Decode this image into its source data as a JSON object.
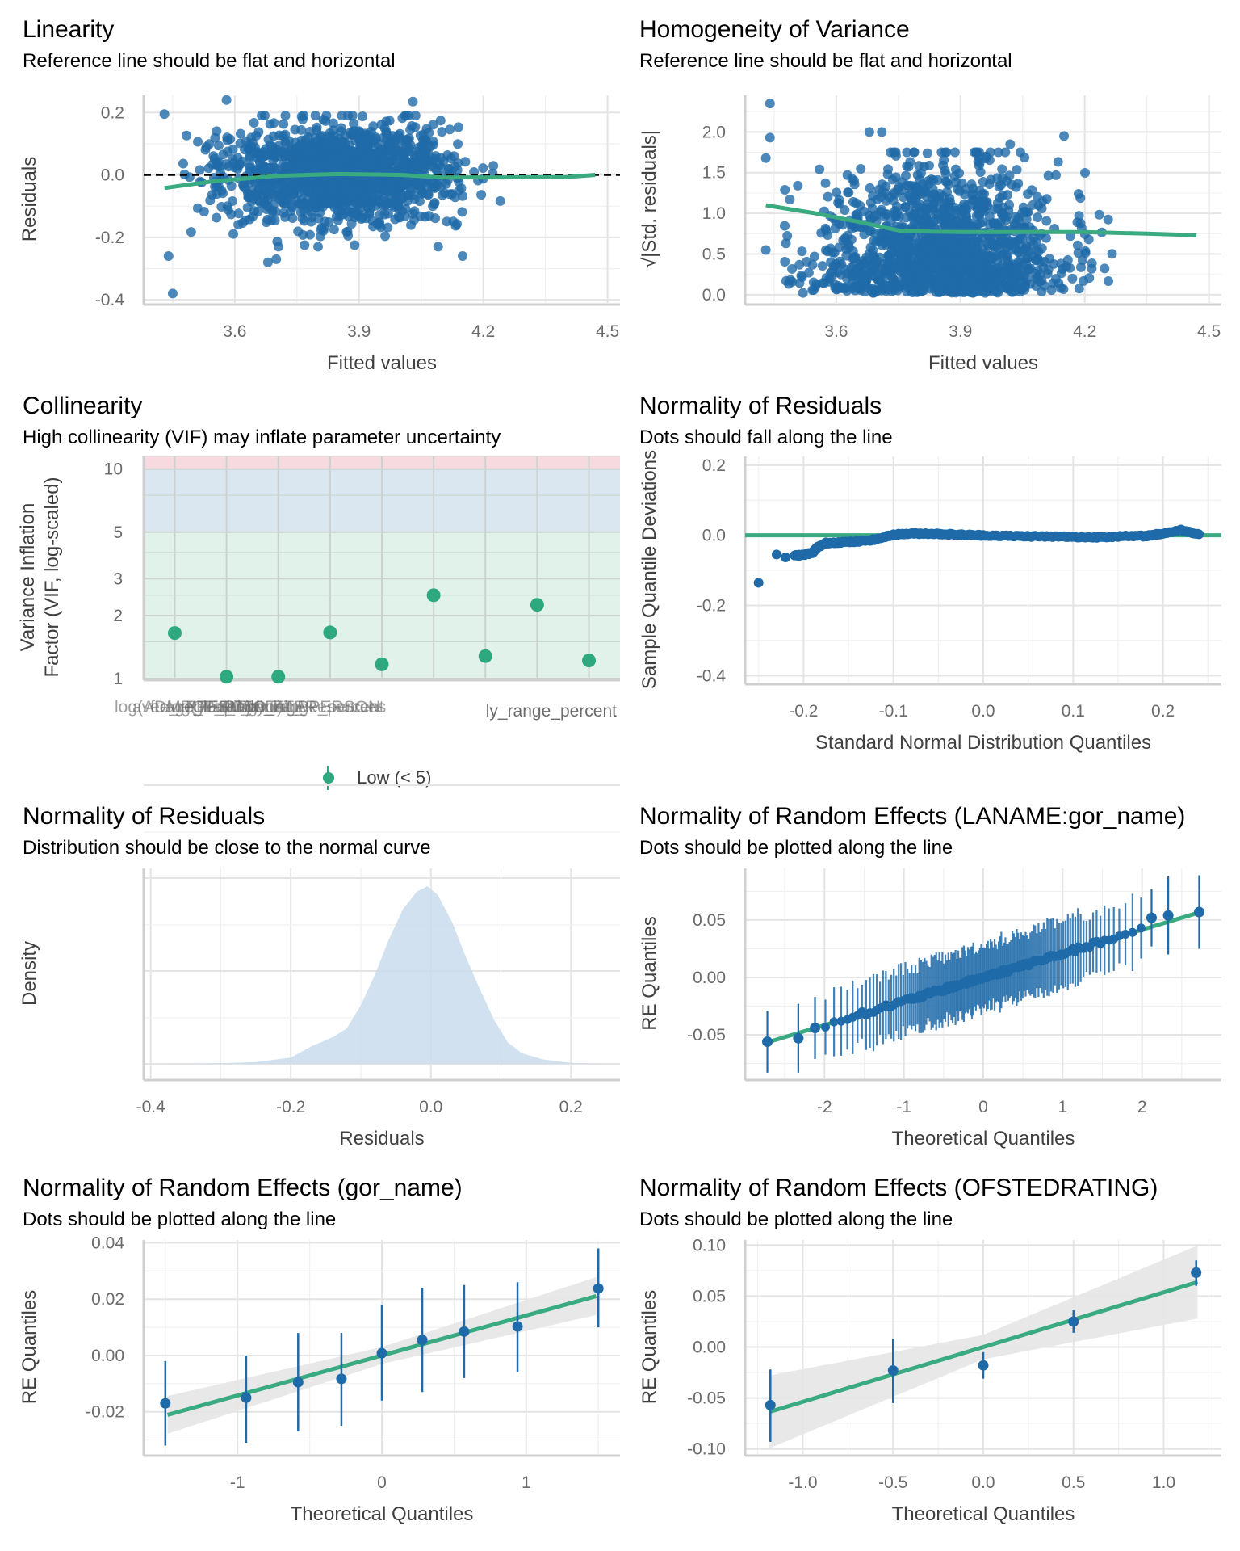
{
  "colors": {
    "points": "#1f6aa8",
    "fit": "#3aaa80",
    "ci": "#e6e6e6",
    "density": "#c9dcec",
    "vif_low": "#e0f2ea",
    "vif_mod": "#dae6f0",
    "vif_high": "#f7dadf",
    "vif_point": "#2ea87e"
  },
  "chart_data": [
    {
      "id": "linearity",
      "type": "scatter",
      "title": "Linearity",
      "subtitle": "Reference line should be flat and horizontal",
      "xlabel": "Fitted values",
      "ylabel": "Residuals",
      "xlim": [
        3.38,
        4.53
      ],
      "ylim": [
        -0.41,
        0.255
      ],
      "xticks": [
        3.6,
        3.9,
        4.2,
        4.5
      ],
      "xtick_labels": [
        "3.6",
        "3.9",
        "4.2",
        "4.5"
      ],
      "yticks": [
        -0.4,
        -0.2,
        0.0,
        0.2
      ],
      "ytick_labels": [
        "-0.4",
        "-0.2",
        "0.0",
        "0.2"
      ],
      "reference_line": 0.0,
      "point_cloud": {
        "n": 1400,
        "x_center": 3.85,
        "x_sd": 0.14,
        "y_sd": 0.075
      },
      "outliers": [
        [
          3.43,
          0.195
        ],
        [
          3.58,
          0.24
        ],
        [
          4.03,
          0.235
        ],
        [
          3.44,
          -0.26
        ],
        [
          3.45,
          -0.38
        ],
        [
          4.15,
          -0.26
        ],
        [
          3.7,
          -0.27
        ],
        [
          3.68,
          -0.28
        ]
      ],
      "smooth": {
        "x": [
          3.43,
          3.55,
          3.7,
          3.85,
          4.0,
          4.1,
          4.25,
          4.4,
          4.47
        ],
        "y": [
          -0.042,
          -0.02,
          -0.003,
          0.003,
          0.0,
          -0.008,
          -0.008,
          -0.007,
          0.0
        ]
      }
    },
    {
      "id": "homogeneity",
      "type": "scatter",
      "title": "Homogeneity of Variance",
      "subtitle": "Reference line should be flat and horizontal",
      "xlabel": "Fitted values",
      "ylabel": "√|Std. residuals|",
      "xlim": [
        3.38,
        4.53
      ],
      "ylim": [
        -0.1,
        2.45
      ],
      "xticks": [
        3.6,
        3.9,
        4.2,
        4.5
      ],
      "xtick_labels": [
        "3.6",
        "3.9",
        "4.2",
        "4.5"
      ],
      "yticks": [
        0.0,
        0.5,
        1.0,
        1.5,
        2.0
      ],
      "ytick_labels": [
        "0.0",
        "0.5",
        "1.0",
        "1.5",
        "2.0"
      ],
      "point_cloud": {
        "n": 1400,
        "x_center": 3.85,
        "x_sd": 0.14
      },
      "outliers": [
        [
          3.44,
          2.35
        ],
        [
          3.44,
          1.93
        ],
        [
          3.43,
          1.68
        ],
        [
          3.68,
          2.0
        ],
        [
          3.71,
          2.0
        ],
        [
          4.15,
          1.95
        ],
        [
          4.02,
          1.85
        ],
        [
          3.43,
          0.55
        ]
      ],
      "smooth": {
        "x": [
          3.43,
          3.55,
          3.65,
          3.76,
          3.9,
          4.05,
          4.2,
          4.35,
          4.47
        ],
        "y": [
          1.1,
          1.0,
          0.9,
          0.78,
          0.77,
          0.77,
          0.77,
          0.75,
          0.73
        ]
      }
    },
    {
      "id": "collinearity",
      "type": "scatter",
      "title": "Collinearity",
      "subtitle": "High collinearity (VIF) may inflate parameter uncertainty",
      "xlabel": "",
      "ylabel": "Variance Inflation\nFactor (VIF, log-scaled)",
      "ylim": [
        1,
        11.5
      ],
      "yscale": "log",
      "yticks": [
        1,
        2,
        3,
        5,
        10
      ],
      "ytick_labels": [
        "1",
        "2",
        "3",
        "5",
        "10"
      ],
      "bands": [
        {
          "from": 1,
          "to": 5,
          "level": "low"
        },
        {
          "from": 5,
          "to": 10,
          "level": "moderate"
        },
        {
          "from": 10,
          "to": 11.5,
          "level": "high"
        }
      ],
      "x_tick_text_overlapping": "log(ADMPOL_PT... _range_percent (overlapping, illegible)",
      "x_tick_last_visible": "y_range_percent",
      "values": [
        1.65,
        1.02,
        1.02,
        1.66,
        1.17,
        2.5,
        1.28,
        2.25,
        1.22
      ],
      "legend": [
        {
          "label": "Low (< 5)"
        }
      ]
    },
    {
      "id": "normality_qq",
      "type": "scatter",
      "title": "Normality of Residuals",
      "subtitle": "Dots should fall along the line",
      "xlabel": "Standard Normal Distribution Quantiles",
      "ylabel": "Sample Quantile Deviations",
      "xlim": [
        -0.265,
        0.265
      ],
      "ylim": [
        -0.42,
        0.225
      ],
      "xticks": [
        -0.2,
        -0.1,
        0.0,
        0.1,
        0.2
      ],
      "xtick_labels": [
        "-0.2",
        "-0.1",
        "0.0",
        "0.1",
        "0.2"
      ],
      "yticks": [
        -0.4,
        -0.2,
        0.0,
        0.2
      ],
      "ytick_labels": [
        "-0.4",
        "-0.2",
        "0.0",
        "0.2"
      ],
      "reference_line": 0.0,
      "points": [
        [
          -0.25,
          -0.135
        ],
        [
          -0.23,
          -0.055
        ],
        [
          -0.22,
          -0.062
        ],
        [
          -0.21,
          -0.058
        ],
        [
          -0.2,
          -0.055
        ],
        [
          -0.19,
          -0.05
        ],
        [
          -0.185,
          -0.035
        ],
        [
          -0.175,
          -0.022
        ],
        [
          -0.16,
          -0.02
        ],
        [
          -0.14,
          -0.018
        ],
        [
          -0.12,
          -0.012
        ],
        [
          -0.1,
          0.002
        ],
        [
          -0.08,
          0.005
        ],
        [
          -0.06,
          0.005
        ],
        [
          -0.04,
          0.003
        ],
        [
          -0.02,
          0.001
        ],
        [
          0.0,
          0.0
        ],
        [
          0.03,
          -0.002
        ],
        [
          0.06,
          -0.003
        ],
        [
          0.09,
          -0.004
        ],
        [
          0.12,
          -0.006
        ],
        [
          0.15,
          -0.003
        ],
        [
          0.18,
          -0.002
        ],
        [
          0.2,
          0.005
        ],
        [
          0.22,
          0.015
        ],
        [
          0.24,
          0.003
        ]
      ]
    },
    {
      "id": "normality_density",
      "type": "area",
      "title": "Normality of Residuals",
      "subtitle": "Distribution should be close to the normal curve",
      "xlabel": "Residuals",
      "ylabel": "Density",
      "xlim": [
        -0.41,
        0.27
      ],
      "xticks": [
        -0.4,
        -0.2,
        0.0,
        0.2
      ],
      "xtick_labels": [
        "-0.4",
        "-0.2",
        "0.0",
        "0.2"
      ],
      "x": [
        -0.38,
        -0.3,
        -0.25,
        -0.2,
        -0.17,
        -0.14,
        -0.12,
        -0.1,
        -0.08,
        -0.06,
        -0.04,
        -0.02,
        -0.005,
        0.01,
        0.03,
        0.05,
        0.07,
        0.09,
        0.11,
        0.13,
        0.16,
        0.2,
        0.24
      ],
      "density": [
        0.0,
        0.003,
        0.01,
        0.035,
        0.1,
        0.15,
        0.2,
        0.33,
        0.5,
        0.7,
        0.87,
        0.97,
        1.0,
        0.95,
        0.8,
        0.6,
        0.42,
        0.25,
        0.12,
        0.06,
        0.025,
        0.006,
        0.0
      ]
    },
    {
      "id": "re_laname",
      "type": "scatter",
      "title": "Normality of Random Effects (LANAME:gor_name)",
      "subtitle": "Dots should be plotted along the line",
      "xlabel": "Theoretical Quantiles",
      "ylabel": "RE Quantiles",
      "xlim": [
        -3.0,
        3.0
      ],
      "ylim": [
        -0.088,
        0.095
      ],
      "xticks": [
        -2,
        -1,
        0,
        1,
        2
      ],
      "xtick_labels": [
        "-2",
        "-1",
        "0",
        "1",
        "2"
      ],
      "yticks": [
        -0.05,
        0.0,
        0.05
      ],
      "ytick_labels": [
        "-0.05",
        "0.00",
        "0.05"
      ],
      "n_groups": 150,
      "line": {
        "slope": 0.0208,
        "intercept": 0.0
      },
      "extremes": [
        [
          -2.72,
          -0.056,
          0.027
        ],
        [
          -2.33,
          -0.053,
          0.03
        ],
        [
          -2.12,
          -0.044,
          0.027
        ],
        [
          2.12,
          0.052,
          0.025
        ],
        [
          2.33,
          0.054,
          0.034
        ],
        [
          2.72,
          0.057,
          0.032
        ]
      ]
    },
    {
      "id": "re_gor",
      "type": "scatter",
      "title": "Normality of Random Effects (gor_name)",
      "subtitle": "Dots should be plotted along the line",
      "xlabel": "Theoretical Quantiles",
      "ylabel": "RE Quantiles",
      "xlim": [
        -1.65,
        1.65
      ],
      "ylim": [
        -0.035,
        0.041
      ],
      "xticks": [
        -1,
        0,
        1
      ],
      "xtick_labels": [
        "-1",
        "0",
        "1"
      ],
      "yticks": [
        -0.02,
        0.0,
        0.02,
        0.04
      ],
      "ytick_labels": [
        "-0.02",
        "0.00",
        "0.02",
        "0.04"
      ],
      "line": {
        "slope": 0.0142,
        "intercept": 0.0
      },
      "points": [
        [
          -1.5,
          -0.017,
          -0.032,
          -0.002
        ],
        [
          -0.94,
          -0.015,
          -0.031,
          0.0
        ],
        [
          -0.58,
          -0.0095,
          -0.027,
          0.008
        ],
        [
          -0.28,
          -0.0083,
          -0.025,
          0.008
        ],
        [
          0.0,
          0.0008,
          -0.016,
          0.018
        ],
        [
          0.28,
          0.0055,
          -0.013,
          0.024
        ],
        [
          0.57,
          0.0085,
          -0.008,
          0.025
        ],
        [
          0.94,
          0.0103,
          -0.006,
          0.026
        ],
        [
          1.5,
          0.0238,
          0.01,
          0.038
        ]
      ]
    },
    {
      "id": "re_ofsted",
      "type": "scatter",
      "title": "Normality of Random Effects (OFSTEDRATING)",
      "subtitle": "Dots should be plotted along the line",
      "xlabel": "Theoretical Quantiles",
      "ylabel": "RE Quantiles",
      "xlim": [
        -1.32,
        1.32
      ],
      "ylim": [
        -0.105,
        0.105
      ],
      "xticks": [
        -1.0,
        -0.5,
        0.0,
        0.5,
        1.0
      ],
      "xtick_labels": [
        "-1.0",
        "-0.5",
        "0.0",
        "0.5",
        "1.0"
      ],
      "yticks": [
        -0.1,
        -0.05,
        0.0,
        0.05,
        0.1
      ],
      "ytick_labels": [
        "-0.10",
        "-0.05",
        "0.00",
        "0.05",
        "0.10"
      ],
      "line": {
        "slope": 0.0537,
        "intercept": 0.0
      },
      "points": [
        [
          -1.18,
          -0.057,
          -0.093,
          -0.022
        ],
        [
          -0.5,
          -0.023,
          -0.055,
          0.008
        ],
        [
          0.0,
          -0.018,
          -0.031,
          -0.005
        ],
        [
          0.5,
          0.025,
          0.014,
          0.036
        ],
        [
          1.18,
          0.073,
          0.06,
          0.085
        ]
      ]
    }
  ]
}
